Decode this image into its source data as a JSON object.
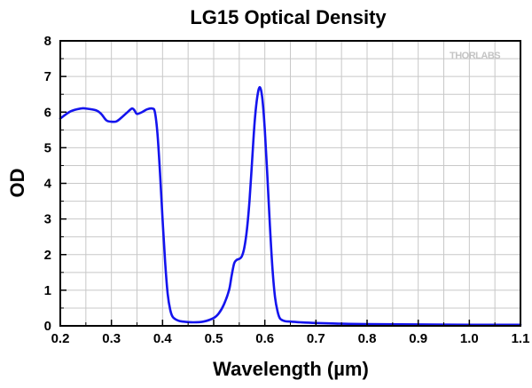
{
  "colors": {
    "series": "#1414ee",
    "grid": "#c8c8c8",
    "axis": "#000000",
    "watermark": "#c4c4c4"
  },
  "watermark": {
    "text": "THORLABS"
  },
  "chart_data": {
    "type": "line",
    "title": "LG15 Optical Density",
    "xlabel": "Wavelength (µm)",
    "ylabel": "OD",
    "xlim": [
      0.2,
      1.1
    ],
    "ylim": [
      0,
      8
    ],
    "xticks": [
      0.2,
      0.3,
      0.4,
      0.5,
      0.6,
      0.7,
      0.8,
      0.9,
      1.0,
      1.1
    ],
    "xtick_labels": [
      "0.2",
      "0.3",
      "0.4",
      "0.5",
      "0.6",
      "0.7",
      "0.8",
      "0.9",
      "1.0",
      "1.1"
    ],
    "yticks": [
      0,
      1,
      2,
      3,
      4,
      5,
      6,
      7,
      8
    ],
    "ytick_labels": [
      "0",
      "1",
      "2",
      "3",
      "4",
      "5",
      "6",
      "7",
      "8"
    ],
    "grid": true,
    "series": [
      {
        "name": "LG15",
        "x": [
          0.2,
          0.22,
          0.24,
          0.25,
          0.27,
          0.28,
          0.29,
          0.3,
          0.31,
          0.32,
          0.33,
          0.34,
          0.345,
          0.35,
          0.36,
          0.37,
          0.38,
          0.385,
          0.39,
          0.395,
          0.4,
          0.405,
          0.41,
          0.415,
          0.42,
          0.43,
          0.44,
          0.46,
          0.48,
          0.5,
          0.51,
          0.52,
          0.53,
          0.535,
          0.54,
          0.545,
          0.55,
          0.555,
          0.56,
          0.565,
          0.57,
          0.575,
          0.58,
          0.585,
          0.59,
          0.595,
          0.6,
          0.605,
          0.61,
          0.615,
          0.62,
          0.625,
          0.63,
          0.64,
          0.65,
          0.67,
          0.7,
          0.75,
          0.8,
          0.9,
          1.0,
          1.1
        ],
        "y": [
          5.82,
          6.02,
          6.1,
          6.1,
          6.05,
          5.95,
          5.77,
          5.73,
          5.74,
          5.85,
          5.98,
          6.1,
          6.05,
          5.95,
          6.0,
          6.08,
          6.1,
          6.0,
          5.4,
          4.3,
          3.0,
          1.8,
          0.9,
          0.45,
          0.25,
          0.15,
          0.12,
          0.1,
          0.12,
          0.22,
          0.35,
          0.6,
          1.0,
          1.4,
          1.75,
          1.85,
          1.88,
          1.95,
          2.2,
          2.7,
          3.5,
          4.6,
          5.7,
          6.4,
          6.7,
          6.4,
          5.5,
          4.2,
          2.8,
          1.6,
          0.8,
          0.4,
          0.2,
          0.13,
          0.12,
          0.1,
          0.08,
          0.06,
          0.05,
          0.04,
          0.03,
          0.03
        ]
      }
    ]
  }
}
